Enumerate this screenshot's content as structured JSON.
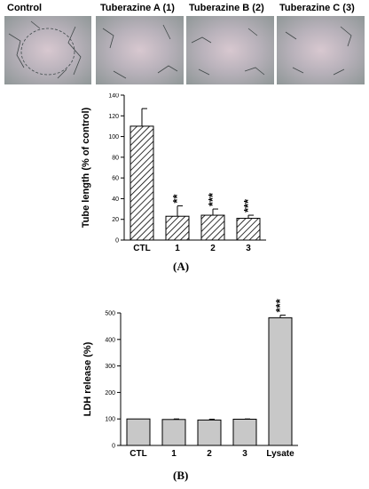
{
  "panels": [
    {
      "title": "Control"
    },
    {
      "title": "Tuberazine A (1)"
    },
    {
      "title": "Tuberazine B (2)"
    },
    {
      "title": "Tuberazine C (3)"
    }
  ],
  "figure_labels": {
    "a": "(A)",
    "b": "(B)"
  },
  "chart_data": [
    {
      "type": "bar",
      "title": "",
      "xlabel": "",
      "ylabel": "Tube length (% of control)",
      "ylim": [
        0,
        140
      ],
      "yticks": [
        0,
        20,
        40,
        60,
        80,
        100,
        120,
        140
      ],
      "categories": [
        "CTL",
        "1",
        "2",
        "3"
      ],
      "values": [
        110,
        23,
        24,
        21
      ],
      "errors": [
        17,
        10,
        6,
        3
      ],
      "significance": [
        "",
        "**",
        "***",
        "***"
      ],
      "bar_fill": "hatched",
      "grid": false
    },
    {
      "type": "bar",
      "title": "",
      "xlabel": "",
      "ylabel": "LDH release (%)",
      "ylim": [
        0,
        500
      ],
      "yticks": [
        0,
        100,
        200,
        300,
        400,
        500
      ],
      "categories": [
        "CTL",
        "1",
        "2",
        "3",
        "Lysate"
      ],
      "values": [
        100,
        98,
        96,
        99,
        482
      ],
      "errors": [
        0,
        2,
        3,
        1,
        10
      ],
      "significance": [
        "",
        "",
        "",
        "",
        "***"
      ],
      "bar_color": "#c8c8c8",
      "grid": false
    }
  ]
}
